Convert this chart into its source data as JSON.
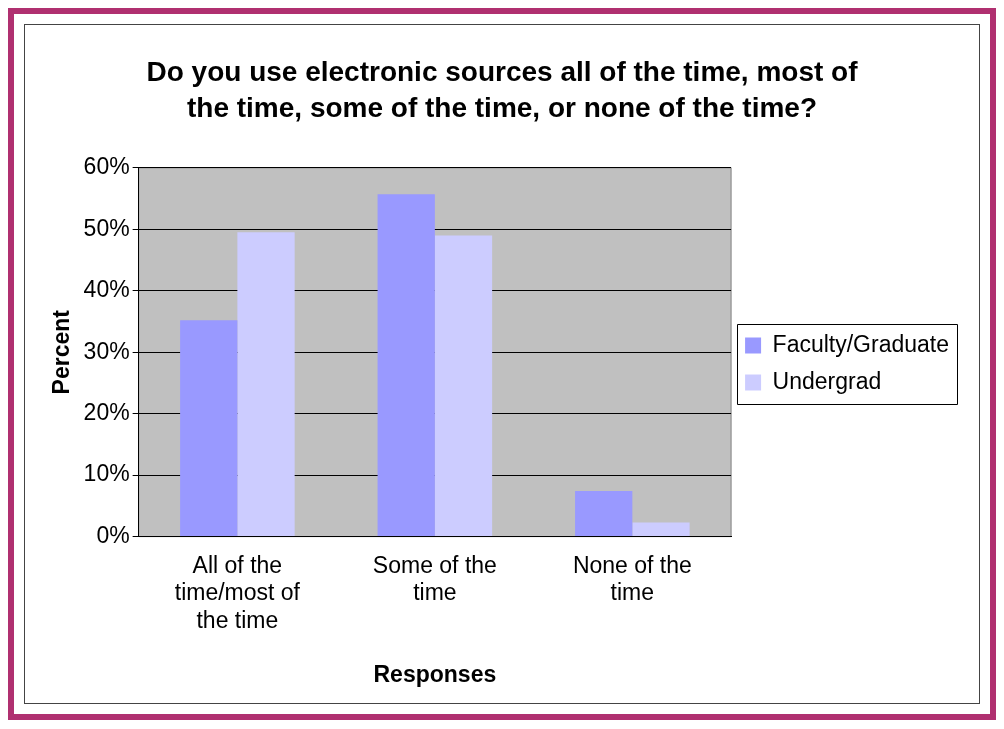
{
  "chart_data": {
    "type": "bar",
    "title": "Do you use electronic sources all of the time, most of the time, some of the time, or none of the time?",
    "xlabel": "Responses",
    "ylabel": "Percent",
    "categories": [
      "All of the time/most of the time",
      "Some of the time",
      "None of the time"
    ],
    "series": [
      {
        "name": "Faculty/Graduate",
        "color": "#9999ff",
        "values": [
          35.2,
          55.7,
          7.4
        ]
      },
      {
        "name": "Undergrad",
        "color": "#ccccff",
        "values": [
          49.5,
          49.0,
          2.3
        ]
      }
    ],
    "ylim": [
      0,
      60
    ],
    "yticks": [
      {
        "value": 0,
        "label": "0%"
      },
      {
        "value": 10,
        "label": "10%"
      },
      {
        "value": 20,
        "label": "20%"
      },
      {
        "value": 30,
        "label": "30%"
      },
      {
        "value": 40,
        "label": "40%"
      },
      {
        "value": 50,
        "label": "50%"
      },
      {
        "value": 60,
        "label": "60%"
      }
    ],
    "grid": "y",
    "legend": "right"
  }
}
